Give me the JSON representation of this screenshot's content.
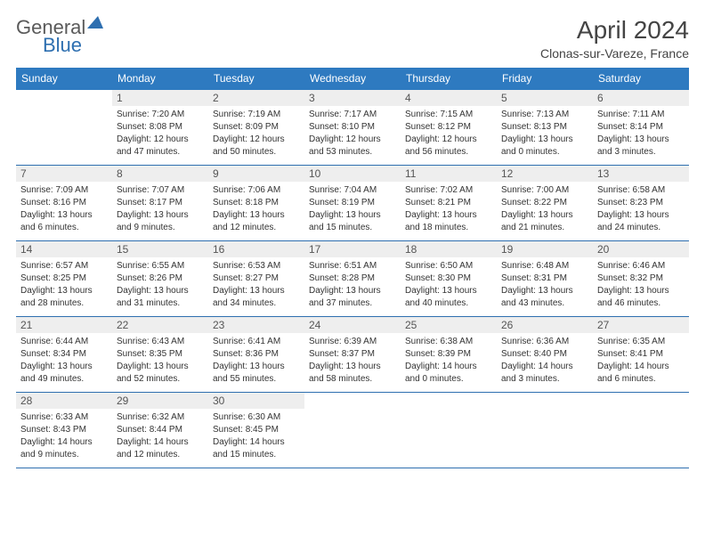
{
  "logo": {
    "grey": "General",
    "blue": "Blue"
  },
  "title": "April 2024",
  "subtitle": "Clonas-sur-Vareze, France",
  "type": "calendar",
  "colors": {
    "header_bar": "#2e7ac0",
    "header_text": "#ffffff",
    "daynum_bg": "#eeeeee",
    "border": "#2e6fb0",
    "body_text": "#333333",
    "background": "#ffffff"
  },
  "day_names": [
    "Sunday",
    "Monday",
    "Tuesday",
    "Wednesday",
    "Thursday",
    "Friday",
    "Saturday"
  ],
  "weeks": [
    [
      {
        "blank": true
      },
      {
        "n": "1",
        "sr": "7:20 AM",
        "ss": "8:08 PM",
        "d1": "12 hours",
        "d2": "and 47 minutes."
      },
      {
        "n": "2",
        "sr": "7:19 AM",
        "ss": "8:09 PM",
        "d1": "12 hours",
        "d2": "and 50 minutes."
      },
      {
        "n": "3",
        "sr": "7:17 AM",
        "ss": "8:10 PM",
        "d1": "12 hours",
        "d2": "and 53 minutes."
      },
      {
        "n": "4",
        "sr": "7:15 AM",
        "ss": "8:12 PM",
        "d1": "12 hours",
        "d2": "and 56 minutes."
      },
      {
        "n": "5",
        "sr": "7:13 AM",
        "ss": "8:13 PM",
        "d1": "13 hours",
        "d2": "and 0 minutes."
      },
      {
        "n": "6",
        "sr": "7:11 AM",
        "ss": "8:14 PM",
        "d1": "13 hours",
        "d2": "and 3 minutes."
      }
    ],
    [
      {
        "n": "7",
        "sr": "7:09 AM",
        "ss": "8:16 PM",
        "d1": "13 hours",
        "d2": "and 6 minutes."
      },
      {
        "n": "8",
        "sr": "7:07 AM",
        "ss": "8:17 PM",
        "d1": "13 hours",
        "d2": "and 9 minutes."
      },
      {
        "n": "9",
        "sr": "7:06 AM",
        "ss": "8:18 PM",
        "d1": "13 hours",
        "d2": "and 12 minutes."
      },
      {
        "n": "10",
        "sr": "7:04 AM",
        "ss": "8:19 PM",
        "d1": "13 hours",
        "d2": "and 15 minutes."
      },
      {
        "n": "11",
        "sr": "7:02 AM",
        "ss": "8:21 PM",
        "d1": "13 hours",
        "d2": "and 18 minutes."
      },
      {
        "n": "12",
        "sr": "7:00 AM",
        "ss": "8:22 PM",
        "d1": "13 hours",
        "d2": "and 21 minutes."
      },
      {
        "n": "13",
        "sr": "6:58 AM",
        "ss": "8:23 PM",
        "d1": "13 hours",
        "d2": "and 24 minutes."
      }
    ],
    [
      {
        "n": "14",
        "sr": "6:57 AM",
        "ss": "8:25 PM",
        "d1": "13 hours",
        "d2": "and 28 minutes."
      },
      {
        "n": "15",
        "sr": "6:55 AM",
        "ss": "8:26 PM",
        "d1": "13 hours",
        "d2": "and 31 minutes."
      },
      {
        "n": "16",
        "sr": "6:53 AM",
        "ss": "8:27 PM",
        "d1": "13 hours",
        "d2": "and 34 minutes."
      },
      {
        "n": "17",
        "sr": "6:51 AM",
        "ss": "8:28 PM",
        "d1": "13 hours",
        "d2": "and 37 minutes."
      },
      {
        "n": "18",
        "sr": "6:50 AM",
        "ss": "8:30 PM",
        "d1": "13 hours",
        "d2": "and 40 minutes."
      },
      {
        "n": "19",
        "sr": "6:48 AM",
        "ss": "8:31 PM",
        "d1": "13 hours",
        "d2": "and 43 minutes."
      },
      {
        "n": "20",
        "sr": "6:46 AM",
        "ss": "8:32 PM",
        "d1": "13 hours",
        "d2": "and 46 minutes."
      }
    ],
    [
      {
        "n": "21",
        "sr": "6:44 AM",
        "ss": "8:34 PM",
        "d1": "13 hours",
        "d2": "and 49 minutes."
      },
      {
        "n": "22",
        "sr": "6:43 AM",
        "ss": "8:35 PM",
        "d1": "13 hours",
        "d2": "and 52 minutes."
      },
      {
        "n": "23",
        "sr": "6:41 AM",
        "ss": "8:36 PM",
        "d1": "13 hours",
        "d2": "and 55 minutes."
      },
      {
        "n": "24",
        "sr": "6:39 AM",
        "ss": "8:37 PM",
        "d1": "13 hours",
        "d2": "and 58 minutes."
      },
      {
        "n": "25",
        "sr": "6:38 AM",
        "ss": "8:39 PM",
        "d1": "14 hours",
        "d2": "and 0 minutes."
      },
      {
        "n": "26",
        "sr": "6:36 AM",
        "ss": "8:40 PM",
        "d1": "14 hours",
        "d2": "and 3 minutes."
      },
      {
        "n": "27",
        "sr": "6:35 AM",
        "ss": "8:41 PM",
        "d1": "14 hours",
        "d2": "and 6 minutes."
      }
    ],
    [
      {
        "n": "28",
        "sr": "6:33 AM",
        "ss": "8:43 PM",
        "d1": "14 hours",
        "d2": "and 9 minutes."
      },
      {
        "n": "29",
        "sr": "6:32 AM",
        "ss": "8:44 PM",
        "d1": "14 hours",
        "d2": "and 12 minutes."
      },
      {
        "n": "30",
        "sr": "6:30 AM",
        "ss": "8:45 PM",
        "d1": "14 hours",
        "d2": "and 15 minutes."
      },
      {
        "blank": true
      },
      {
        "blank": true
      },
      {
        "blank": true
      },
      {
        "blank": true
      }
    ]
  ],
  "labels": {
    "sunrise": "Sunrise: ",
    "sunset": "Sunset: ",
    "daylight": "Daylight: "
  }
}
